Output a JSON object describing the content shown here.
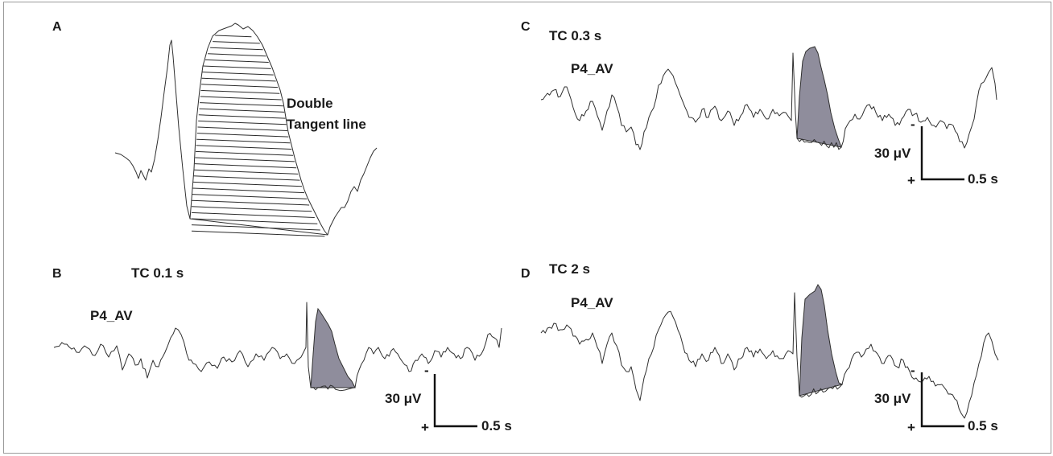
{
  "panels": {
    "a": {
      "label": "A",
      "annotation_line1": "Double",
      "annotation_line2": "Tangent line"
    },
    "b": {
      "label": "B",
      "time_constant": "TC 0.1 s",
      "channel": "P4_AV",
      "scale_voltage": "30 μV",
      "scale_time": "0.5 s",
      "minus": "-",
      "plus": "+"
    },
    "c": {
      "label": "C",
      "time_constant": "TC 0.3 s",
      "channel": "P4_AV",
      "scale_voltage": "30 μV",
      "scale_time": "0.5 s",
      "minus": "-",
      "plus": "+"
    },
    "d": {
      "label": "D",
      "time_constant": "TC 2 s",
      "channel": "P4_AV",
      "scale_voltage": "30 μV",
      "scale_time": "0.5 s",
      "minus": "-",
      "plus": "+"
    }
  },
  "colors": {
    "trace": "#2f2f2f",
    "slow_wave_fill": "#8f8d9c",
    "frame": "#9a9a9a"
  }
}
